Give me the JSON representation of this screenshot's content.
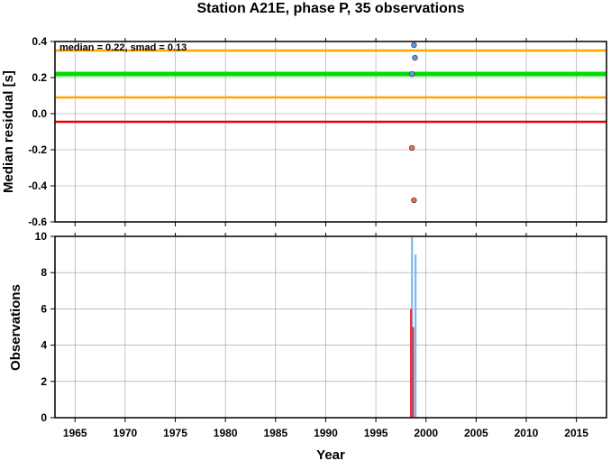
{
  "chart_data": [
    {
      "type": "scatter",
      "title": "Station A21E, phase P, 35 observations",
      "ylabel": "Median residual [s]",
      "xlim": [
        1963,
        2018
      ],
      "ylim": [
        -0.6,
        0.4
      ],
      "xticks": [
        1965,
        1970,
        1975,
        1980,
        1985,
        1990,
        1995,
        2000,
        2005,
        2010,
        2015
      ],
      "yticks": [
        -0.6,
        -0.4,
        -0.2,
        0.0,
        0.2,
        0.4
      ],
      "ytick_labels": [
        "-0.6",
        "-0.4",
        "-0.2",
        "0.0",
        "0.2",
        "0.4"
      ],
      "grid": true,
      "annotation": "median = 0.22, smad = 0.13",
      "hlines": [
        {
          "y": 0.35,
          "color": "#ffa500"
        },
        {
          "y": 0.22,
          "color": "#00dd00"
        },
        {
          "y": 0.09,
          "color": "#ffa500"
        },
        {
          "y": -0.045,
          "color": "#ee0000"
        }
      ],
      "series": [
        {
          "color": "#5b9bf0",
          "points": [
            [
              1998.8,
              0.38
            ],
            [
              1998.9,
              0.31
            ],
            [
              1998.6,
              0.22
            ]
          ]
        },
        {
          "color": "#f06a5a",
          "points": [
            [
              1998.6,
              -0.19
            ],
            [
              1998.8,
              -0.48
            ]
          ]
        }
      ]
    },
    {
      "type": "bar",
      "xlabel": "Year",
      "ylabel": "Observations",
      "xlim": [
        1963,
        2018
      ],
      "ylim": [
        0,
        10
      ],
      "xticks": [
        1965,
        1970,
        1975,
        1980,
        1985,
        1990,
        1995,
        2000,
        2005,
        2010,
        2015
      ],
      "yticks": [
        0,
        2,
        4,
        6,
        8,
        10
      ],
      "grid": true,
      "series": [
        {
          "color": "#7cb8f0",
          "bars": [
            [
              1998.6,
              10
            ],
            [
              1998.95,
              9
            ]
          ]
        },
        {
          "color": "#ee3333",
          "bars": [
            [
              1998.5,
              6
            ]
          ]
        },
        {
          "color": "#b04060",
          "bars": [
            [
              1998.7,
              5
            ]
          ]
        }
      ]
    }
  ]
}
